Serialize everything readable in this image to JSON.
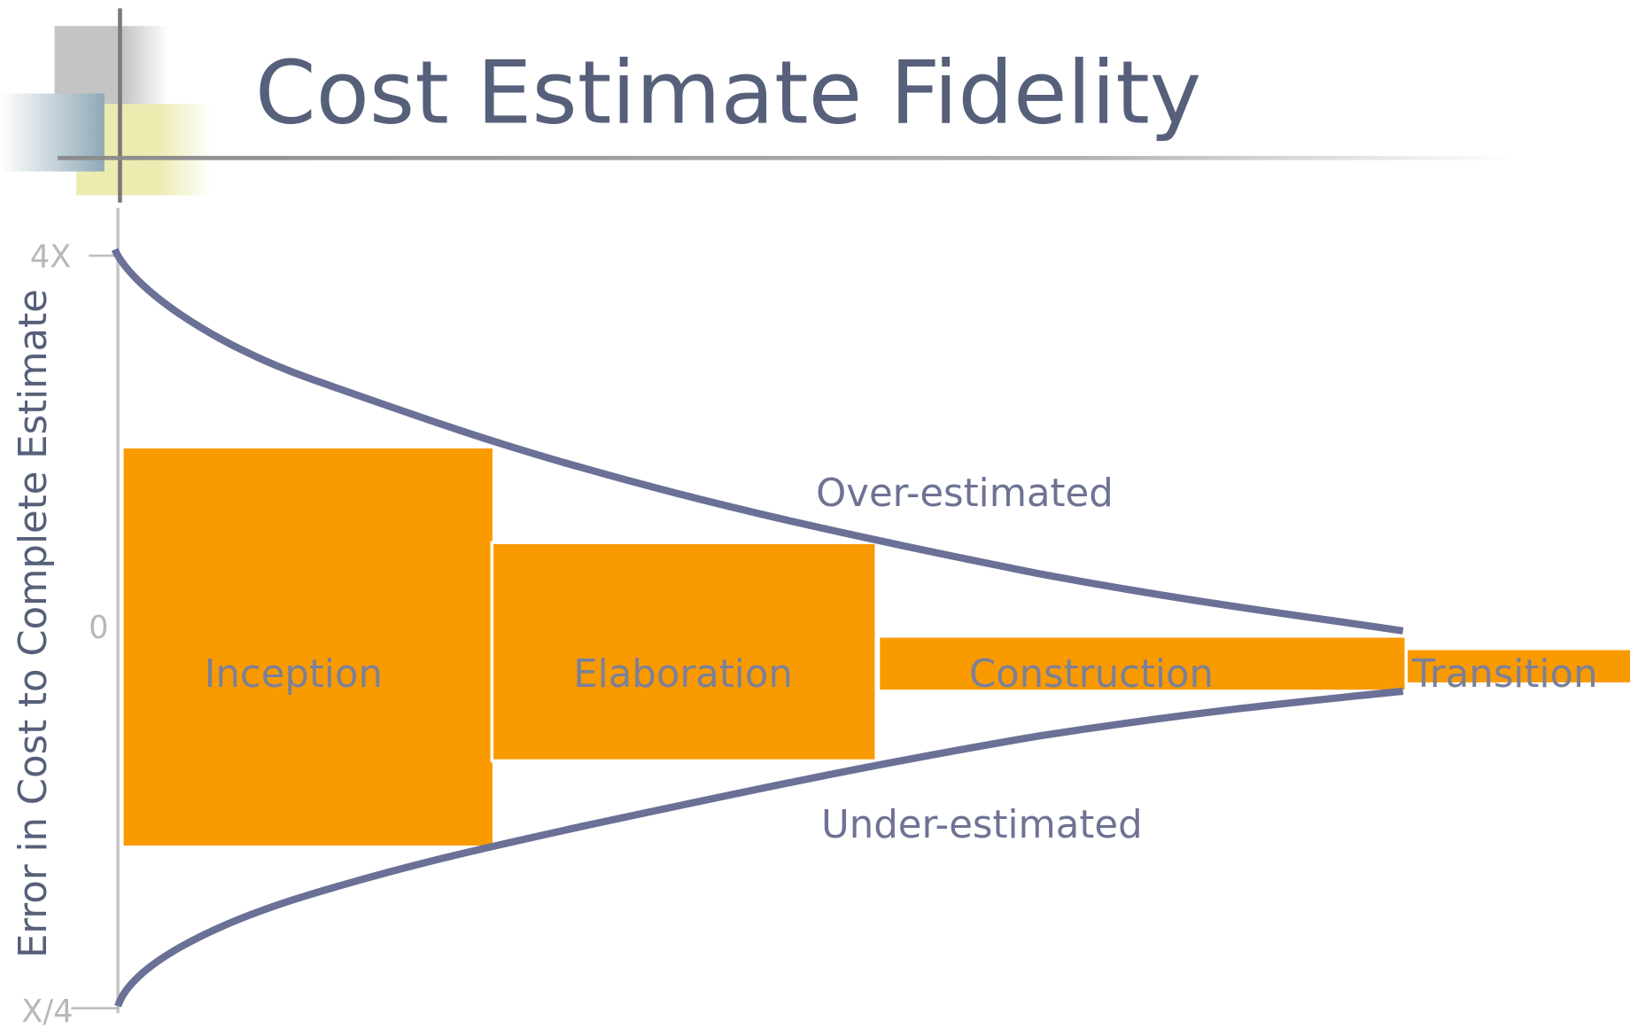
{
  "title": "Cost Estimate Fidelity",
  "y_axis_label": "Error in Cost to Complete Estimate",
  "y_ticks": [
    "4X",
    "0",
    "X/4"
  ],
  "phases": [
    "Inception",
    "Elaboration",
    "Construction",
    "Transition"
  ],
  "regions": {
    "over": "Over-estimated",
    "under": "Under-estimated"
  }
}
